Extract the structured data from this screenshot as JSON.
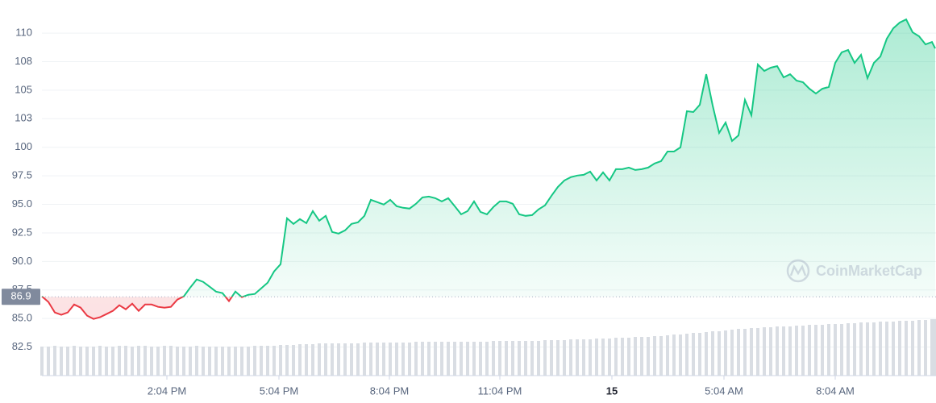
{
  "chart_data": {
    "type": "line",
    "x": [
      0,
      1,
      2,
      3,
      4,
      5,
      6,
      7,
      8,
      9,
      10,
      11,
      12,
      13,
      14,
      15,
      16,
      17,
      18,
      19,
      20,
      21,
      22,
      23,
      24,
      25,
      26,
      27,
      28,
      29,
      30,
      31,
      32,
      33,
      34,
      35,
      36,
      37,
      38,
      39,
      40,
      41,
      42,
      43,
      44,
      45,
      46,
      47,
      48,
      49,
      50,
      51,
      52,
      53,
      54,
      55,
      56,
      57,
      58,
      59,
      60,
      61,
      62,
      63,
      64,
      65,
      66,
      67,
      68,
      69,
      70,
      71,
      72,
      73,
      74,
      75,
      76,
      77,
      78,
      79,
      80,
      81,
      82,
      83,
      84,
      85,
      86,
      87,
      88,
      89,
      90,
      91,
      92,
      93,
      94,
      95,
      96,
      97,
      98,
      99,
      100,
      101,
      102,
      103,
      104,
      105,
      106,
      107,
      108,
      109,
      110,
      111,
      112,
      113,
      114,
      115,
      116,
      117,
      118,
      119,
      120,
      121,
      122,
      123,
      124,
      125,
      126,
      127,
      128,
      129,
      130,
      131,
      132,
      133,
      134,
      135,
      136,
      137,
      138,
      138.5
    ],
    "values": [
      86.94,
      86.45,
      85.53,
      85.32,
      85.53,
      86.23,
      85.95,
      85.25,
      84.96,
      85.11,
      85.39,
      85.67,
      86.16,
      85.81,
      86.3,
      85.67,
      86.23,
      86.23,
      86.02,
      85.95,
      86.02,
      86.66,
      86.94,
      87.72,
      88.42,
      88.21,
      87.79,
      87.36,
      87.22,
      86.52,
      87.36,
      86.87,
      87.08,
      87.15,
      87.64,
      88.14,
      89.13,
      89.76,
      93.78,
      93.29,
      93.71,
      93.36,
      94.41,
      93.57,
      93.99,
      92.58,
      92.44,
      92.72,
      93.29,
      93.43,
      93.99,
      95.4,
      95.19,
      94.98,
      95.4,
      94.84,
      94.7,
      94.63,
      95.05,
      95.61,
      95.68,
      95.54,
      95.26,
      95.54,
      94.84,
      94.13,
      94.41,
      95.26,
      94.34,
      94.13,
      94.77,
      95.26,
      95.26,
      95.05,
      94.13,
      93.99,
      94.06,
      94.56,
      94.91,
      95.75,
      96.53,
      97.09,
      97.38,
      97.52,
      97.59,
      97.87,
      97.09,
      97.8,
      97.09,
      98.08,
      98.08,
      98.22,
      98.01,
      98.08,
      98.22,
      98.58,
      98.79,
      99.63,
      99.63,
      99.99,
      103.16,
      103.09,
      103.72,
      106.4,
      103.65,
      101.26,
      102.17,
      100.55,
      101.04,
      104.15,
      102.81,
      107.25,
      106.69,
      106.97,
      107.11,
      106.12,
      106.4,
      105.84,
      105.7,
      105.13,
      104.71,
      105.13,
      105.28,
      107.39,
      108.31,
      108.52,
      107.39,
      108.1,
      106.05,
      107.39,
      107.95,
      109.51,
      110.42,
      110.92,
      111.2,
      110.07,
      109.72,
      109.01,
      109.22,
      108.66
    ],
    "volume": [
      36,
      36,
      37,
      36,
      36,
      37,
      36,
      36,
      36,
      37,
      36,
      36,
      37,
      37,
      36,
      37,
      37,
      36,
      36,
      37,
      37,
      36,
      36,
      36,
      37,
      36,
      36,
      36,
      36,
      36,
      36,
      36,
      36,
      37,
      37,
      37,
      37,
      38,
      38,
      38,
      39,
      39,
      39,
      40,
      40,
      40,
      40,
      40,
      40,
      40,
      41,
      41,
      41,
      41,
      41,
      41,
      41,
      41,
      42,
      42,
      42,
      42,
      42,
      42,
      42,
      42,
      42,
      42,
      42,
      42,
      43,
      43,
      43,
      43,
      43,
      43,
      43,
      43,
      44,
      44,
      44,
      44,
      45,
      45,
      45,
      45,
      46,
      46,
      46,
      47,
      47,
      47,
      48,
      48,
      48,
      49,
      49,
      50,
      51,
      51,
      52,
      53,
      53,
      54,
      55,
      55,
      56,
      57,
      58,
      58,
      59,
      59,
      60,
      60,
      61,
      61,
      61,
      62,
      62,
      63,
      63,
      63,
      64,
      64,
      64,
      65,
      65,
      66,
      66,
      66,
      67,
      67,
      67,
      68,
      68,
      68,
      69,
      69,
      70,
      70
    ],
    "volume_lim": [
      0,
      100
    ],
    "volume_color": "#d9dde3",
    "reference": 86.9,
    "up_color": "#16c784",
    "down_color": "#ea3943",
    "xlim": [
      0,
      138.5
    ],
    "xticks": [
      {
        "value": 19.375,
        "label": "2:04 PM"
      },
      {
        "value": 36.75,
        "label": "5:04 PM"
      },
      {
        "value": 53.875,
        "label": "8:04 PM"
      },
      {
        "value": 71,
        "label": "11:04 PM"
      },
      {
        "value": 88.375,
        "label": "15"
      },
      {
        "value": 105.75,
        "label": "5:04 AM"
      },
      {
        "value": 123,
        "label": "8:04 AM"
      }
    ],
    "ylim": [
      80,
      112.9
    ],
    "yticks": [
      82.5,
      {
        "value": 85,
        "label": "85.0"
      },
      87.5,
      {
        "value": 90,
        "label": "90.0"
      },
      92.5,
      {
        "value": 95,
        "label": "95.0"
      },
      97.5,
      100,
      {
        "value": 102.5,
        "label": "103"
      },
      105,
      {
        "value": 107.5,
        "label": "108"
      },
      110
    ],
    "grid": true,
    "watermark": "CoinMarketCap"
  }
}
